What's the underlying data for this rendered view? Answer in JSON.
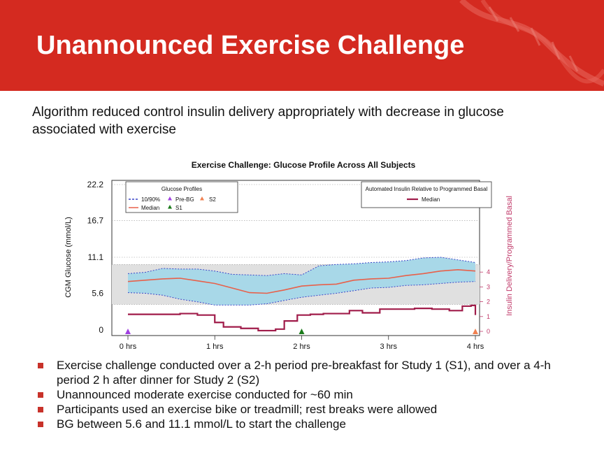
{
  "slide": {
    "title": "Unannounced Exercise Challenge",
    "subtitle": "Algorithm reduced control insulin delivery appropriately with decrease in glucose associated with exercise",
    "bullets": [
      "Exercise challenge conducted over a 2-h period pre-breakfast for Study 1 (S1), and over a 4-h period 2 h after dinner for Study 2 (S2)",
      "Unannounced moderate exercise conducted for ~60 min",
      "Participants used an exercise bike or treadmill; rest breaks were allowed",
      "BG between 5.6 and 11.1 mmol/L to start the challenge"
    ],
    "colors": {
      "banner": "#d42a20",
      "bullet": "#c8322a"
    }
  },
  "chart_data": {
    "type": "line",
    "title": "Exercise Challenge: Glucose Profile Across All Subjects",
    "ylabel": "CGM Glucose (mmol/L)",
    "y2label": "Insulin Delivery/Programmed Basal",
    "ylim": [
      0,
      22.2
    ],
    "y2lim": [
      0,
      4.5
    ],
    "xlim": [
      0,
      4
    ],
    "xticks": [
      0,
      1,
      2,
      3,
      4
    ],
    "xticklabels": [
      "0 hrs",
      "1 hrs",
      "2 hrs",
      "3 hrs",
      "4 hrs"
    ],
    "yticks": [
      0,
      5.6,
      11.1,
      16.7,
      22.2
    ],
    "yticklabels": [
      "0",
      "5.6",
      "11.1",
      "16.7",
      "22.2"
    ],
    "y2ticks": [
      0,
      1,
      2,
      3,
      4
    ],
    "y2ticklabels": [
      "0",
      "1",
      "2",
      "3",
      "4"
    ],
    "target_range": [
      3.9,
      10.0
    ],
    "legend_glucose": {
      "title": "Glucose Profiles",
      "items": [
        "10/90%",
        "Median",
        "Pre-BG",
        "S1",
        "S2"
      ]
    },
    "legend_insulin": {
      "title": "Automated Insulin Relative to Programmed Basal",
      "items": [
        "Median"
      ]
    },
    "x": [
      0,
      0.2,
      0.4,
      0.6,
      0.8,
      1.0,
      1.2,
      1.4,
      1.6,
      1.8,
      2.0,
      2.2,
      2.4,
      2.6,
      2.8,
      3.0,
      3.2,
      3.4,
      3.6,
      3.8,
      4.0
    ],
    "series": [
      {
        "name": "Median",
        "color": "#e8604a",
        "values": [
          7.4,
          7.6,
          7.8,
          7.9,
          7.5,
          7.1,
          6.4,
          5.7,
          5.6,
          6.1,
          6.7,
          6.9,
          7.0,
          7.6,
          7.8,
          7.9,
          8.3,
          8.6,
          9.0,
          9.2,
          9.0
        ]
      },
      {
        "name": "10/90% upper",
        "color": "#3a45c8",
        "values": [
          8.6,
          8.8,
          9.4,
          9.3,
          9.3,
          9.0,
          8.5,
          8.4,
          8.3,
          8.6,
          8.4,
          9.8,
          10.0,
          10.1,
          10.3,
          10.4,
          10.6,
          11.0,
          11.1,
          10.7,
          10.3
        ]
      },
      {
        "name": "10/90% lower",
        "color": "#3a45c8",
        "values": [
          5.7,
          5.6,
          5.3,
          4.7,
          4.3,
          3.8,
          3.8,
          3.8,
          4.0,
          4.5,
          5.0,
          5.3,
          5.6,
          6.0,
          6.4,
          6.5,
          6.8,
          6.9,
          7.1,
          7.3,
          7.4
        ]
      }
    ],
    "insulin_median": {
      "color": "#a01c4a",
      "x": [
        0,
        0.3,
        0.6,
        0.8,
        1.0,
        1.1,
        1.3,
        1.5,
        1.7,
        1.8,
        1.95,
        2.1,
        2.25,
        2.4,
        2.55,
        2.7,
        2.9,
        3.1,
        3.3,
        3.5,
        3.7,
        3.85,
        3.95,
        4.0
      ],
      "values": [
        1.15,
        1.15,
        1.2,
        1.1,
        0.6,
        0.3,
        0.2,
        0.05,
        0.15,
        0.7,
        1.1,
        1.15,
        1.2,
        1.2,
        1.4,
        1.25,
        1.5,
        1.5,
        1.55,
        1.5,
        1.4,
        1.7,
        1.75,
        1.1
      ]
    },
    "markers": [
      {
        "name": "Pre-BG",
        "x": 0,
        "color": "#a040e0"
      },
      {
        "name": "S1",
        "x": 2,
        "color": "#1a7a1a"
      },
      {
        "name": "S2",
        "x": 4,
        "color": "#f08050"
      }
    ]
  }
}
